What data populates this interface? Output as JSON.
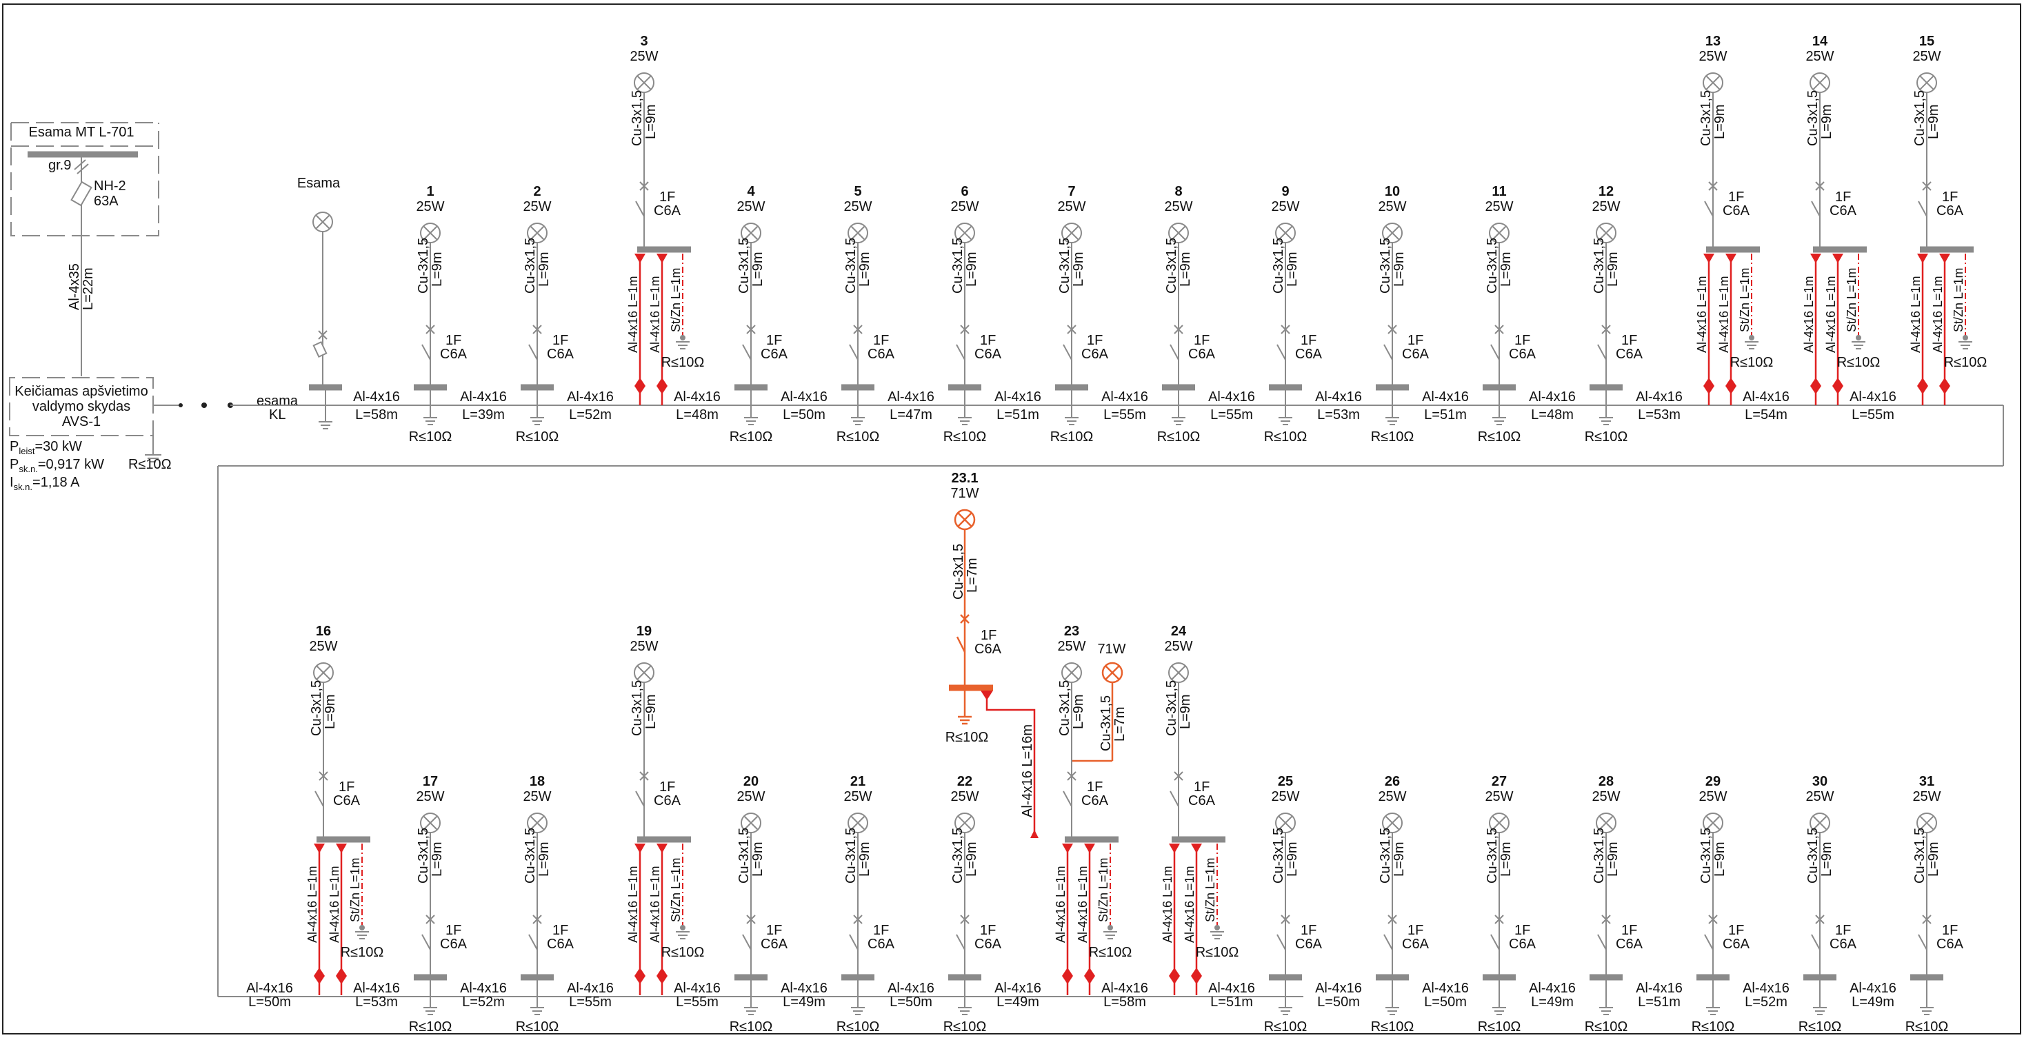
{
  "supply": {
    "panel_title": "Esama MT L-701",
    "group": "gr.9",
    "fuse_type": "NH-2",
    "fuse_rating": "63A",
    "cable_type": "Al-4x35",
    "cable_length": "L=22m"
  },
  "controller": {
    "name_line1": "Keičiamas apšvietimo",
    "name_line2": "valdymo skydas",
    "name_line3": "AVS-1",
    "earth": "R≤10Ω",
    "p_allowed_sym": "P",
    "p_allowed_sub": "leist",
    "p_allowed_val": "=30 kW",
    "p_calc_sym": "P",
    "p_calc_sub": "sk.n.",
    "p_calc_val": "=0,917 kW",
    "i_calc_sym": "I",
    "i_calc_sub": "sk.n.",
    "i_calc_val": "=1,18 A"
  },
  "existing": {
    "label": "Esama",
    "cable_line1": "esama",
    "cable_line2": "KL"
  },
  "common": {
    "breaker_poles": "1F",
    "breaker_rating": "C6A",
    "pole_cable": "Cu-3x1,5",
    "earth": "R≤10Ω",
    "trunk_cable": "Al-4x16",
    "earth_wire": "St/Zn L=1m",
    "riser": "Al-4x16 L=1m"
  },
  "poles": [
    {
      "id": "1",
      "power": "25W",
      "lamp_cable_len": "L=9m",
      "seg_len": "L=58m"
    },
    {
      "id": "2",
      "power": "25W",
      "lamp_cable_len": "L=9m",
      "seg_len": "L=39m"
    },
    {
      "id": "3",
      "power": "25W",
      "lamp_cable_len": "L=9m",
      "seg_len": "L=52m"
    },
    {
      "id": "4",
      "power": "25W",
      "lamp_cable_len": "L=9m",
      "seg_len": "L=48m"
    },
    {
      "id": "5",
      "power": "25W",
      "lamp_cable_len": "L=9m",
      "seg_len": "L=50m"
    },
    {
      "id": "6",
      "power": "25W",
      "lamp_cable_len": "L=9m",
      "seg_len": "L=47m"
    },
    {
      "id": "7",
      "power": "25W",
      "lamp_cable_len": "L=9m",
      "seg_len": "L=51m"
    },
    {
      "id": "8",
      "power": "25W",
      "lamp_cable_len": "L=9m",
      "seg_len": "L=55m"
    },
    {
      "id": "9",
      "power": "25W",
      "lamp_cable_len": "L=9m",
      "seg_len": "L=55m"
    },
    {
      "id": "10",
      "power": "25W",
      "lamp_cable_len": "L=9m",
      "seg_len": "L=53m"
    },
    {
      "id": "11",
      "power": "25W",
      "lamp_cable_len": "L=9m",
      "seg_len": "L=51m"
    },
    {
      "id": "12",
      "power": "25W",
      "lamp_cable_len": "L=9m",
      "seg_len": "L=48m"
    },
    {
      "id": "13",
      "power": "25W",
      "lamp_cable_len": "L=9m",
      "seg_len": "L=53m"
    },
    {
      "id": "14",
      "power": "25W",
      "lamp_cable_len": "L=9m",
      "seg_len": "L=54m"
    },
    {
      "id": "15",
      "power": "25W",
      "lamp_cable_len": "L=9m",
      "seg_len": "L=55m"
    },
    {
      "id": "16",
      "power": "25W",
      "lamp_cable_len": "L=9m",
      "seg_len": "L=50m"
    },
    {
      "id": "17",
      "power": "25W",
      "lamp_cable_len": "L=9m",
      "seg_len": "L=53m"
    },
    {
      "id": "18",
      "power": "25W",
      "lamp_cable_len": "L=9m",
      "seg_len": "L=52m"
    },
    {
      "id": "19",
      "power": "25W",
      "lamp_cable_len": "L=9m",
      "seg_len": "L=55m"
    },
    {
      "id": "20",
      "power": "25W",
      "lamp_cable_len": "L=9m",
      "seg_len": "L=55m"
    },
    {
      "id": "21",
      "power": "25W",
      "lamp_cable_len": "L=9m",
      "seg_len": "L=49m"
    },
    {
      "id": "22",
      "power": "25W",
      "lamp_cable_len": "L=9m",
      "seg_len": "L=50m"
    },
    {
      "id": "23",
      "power": "25W",
      "lamp_cable_len": "L=9m",
      "seg_len": "L=49m"
    },
    {
      "id": "24",
      "power": "25W",
      "lamp_cable_len": "L=9m",
      "seg_len": "L=58m"
    },
    {
      "id": "25",
      "power": "25W",
      "lamp_cable_len": "L=9m",
      "seg_len": "L=51m"
    },
    {
      "id": "26",
      "power": "25W",
      "lamp_cable_len": "L=9m",
      "seg_len": "L=50m"
    },
    {
      "id": "27",
      "power": "25W",
      "lamp_cable_len": "L=9m",
      "seg_len": "L=50m"
    },
    {
      "id": "28",
      "power": "25W",
      "lamp_cable_len": "L=9m",
      "seg_len": "L=49m"
    },
    {
      "id": "29",
      "power": "25W",
      "lamp_cable_len": "L=9m",
      "seg_len": "L=51m"
    },
    {
      "id": "30",
      "power": "25W",
      "lamp_cable_len": "L=9m",
      "seg_len": "L=52m"
    },
    {
      "id": "31",
      "power": "25W",
      "lamp_cable_len": "L=9m",
      "seg_len": "L=49m"
    }
  ],
  "new_branch": {
    "lamp_a_power": "71W",
    "lamp_a_id": "23.1",
    "lamp_a_cable_len": "L=7m",
    "lamp_b_power": "71W",
    "lamp_b_cable_len": "L=7m",
    "feed_cable": "Al-4x16 L=16m"
  },
  "colors": {
    "existing": "#8a8a8a",
    "new": "#e8612c",
    "riser": "#e02020"
  }
}
